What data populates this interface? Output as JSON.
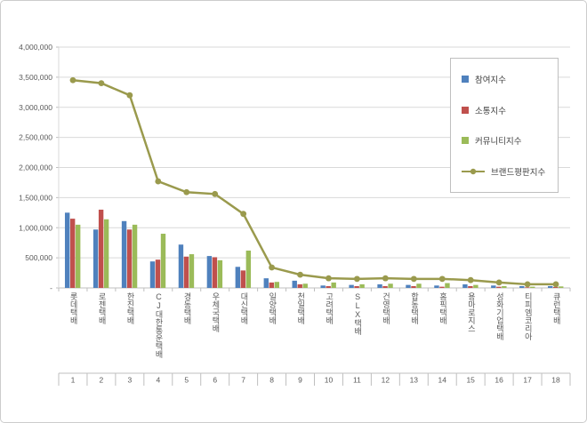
{
  "chart_data": {
    "type": "combo-bar-line",
    "title": "",
    "categories": [
      "롯데택배",
      "로젠택배",
      "한진택배",
      "CJ대한통운택배",
      "경동택배",
      "우체국택배",
      "대신택배",
      "일양택배",
      "천일택배",
      "고려택배",
      "SLX택배",
      "건영택배",
      "합동택배",
      "홈픽택배",
      "용마로지스",
      "성화기업택배",
      "티피엠코리아",
      "큐런택배"
    ],
    "ranks": [
      "1",
      "2",
      "3",
      "4",
      "5",
      "6",
      "7",
      "8",
      "9",
      "10",
      "11",
      "12",
      "13",
      "14",
      "15",
      "16",
      "17",
      "18"
    ],
    "bar_series": [
      {
        "name": "참여지수",
        "color": "#4F81BD",
        "values": [
          1250000,
          970000,
          1110000,
          440000,
          720000,
          530000,
          350000,
          160000,
          120000,
          40000,
          50000,
          60000,
          50000,
          40000,
          60000,
          40000,
          30000,
          30000
        ]
      },
      {
        "name": "소통지수",
        "color": "#C0504D",
        "values": [
          1150000,
          1300000,
          970000,
          470000,
          520000,
          510000,
          290000,
          90000,
          60000,
          30000,
          30000,
          30000,
          30000,
          20000,
          30000,
          20000,
          10000,
          15000
        ]
      },
      {
        "name": "커뮤니티지수",
        "color": "#9BBB59",
        "values": [
          1050000,
          1140000,
          1050000,
          900000,
          560000,
          460000,
          620000,
          100000,
          70000,
          90000,
          60000,
          70000,
          70000,
          80000,
          50000,
          30000,
          20000,
          25000
        ]
      }
    ],
    "line_series": {
      "name": "브랜드평판지수",
      "color": "#9A9A4D",
      "values": [
        3450000,
        3400000,
        3200000,
        1770000,
        1590000,
        1560000,
        1230000,
        340000,
        220000,
        160000,
        150000,
        160000,
        150000,
        150000,
        130000,
        90000,
        60000,
        60000
      ]
    },
    "y_axis": {
      "min": 0,
      "max": 4000000,
      "step": 500000,
      "tick_labels": [
        "-",
        "500,000",
        "1,000,000",
        "1,500,000",
        "2,000,000",
        "2,500,000",
        "3,000,000",
        "3,500,000",
        "4,000,000"
      ]
    },
    "grid": true,
    "legend_position": "right-top",
    "colors": {
      "grid": "#d9d9d9",
      "axis": "#bfbfbf",
      "tick_text": "#595959"
    }
  }
}
